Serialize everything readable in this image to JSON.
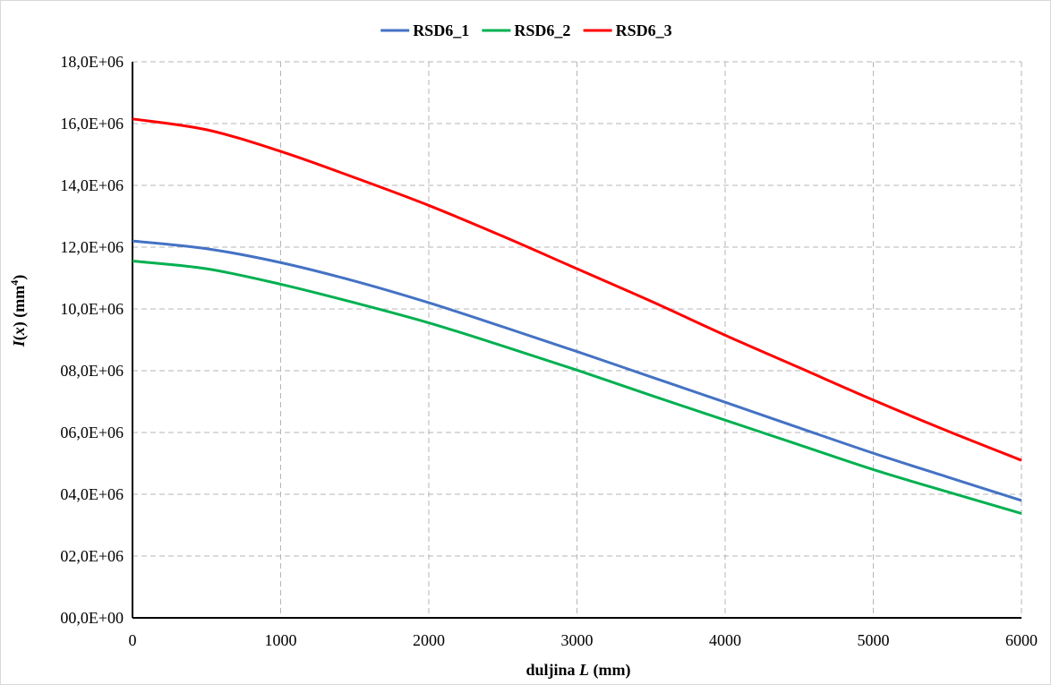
{
  "chart_data": {
    "type": "line",
    "legend": {
      "position": "top"
    },
    "grid": true,
    "grid_style": "dashed",
    "xlim": [
      0,
      6000
    ],
    "ylim": [
      0,
      18000000
    ],
    "x_ticks": [
      0,
      1000,
      2000,
      3000,
      4000,
      5000,
      6000
    ],
    "x_tick_labels": [
      "0",
      "1000",
      "2000",
      "3000",
      "4000",
      "5000",
      "6000"
    ],
    "y_ticks": [
      0,
      2000000,
      4000000,
      6000000,
      8000000,
      10000000,
      12000000,
      14000000,
      16000000,
      18000000
    ],
    "y_tick_labels": [
      "00,0E+00",
      "02,0E+06",
      "04,0E+06",
      "06,0E+06",
      "08,0E+06",
      "10,0E+06",
      "12,0E+06",
      "14,0E+06",
      "16,0E+06",
      "18,0E+06"
    ],
    "xlabel_parts": {
      "text": "duljina ",
      "italic": "L",
      "unit": " (mm)"
    },
    "ylabel_parts": {
      "italic": "I",
      "open": "(",
      "var": "x",
      "close": ") (mm",
      "sup": "4",
      "end": ")"
    },
    "x": [
      0,
      500,
      1000,
      1500,
      2000,
      2500,
      3000,
      3500,
      4000,
      4500,
      5000,
      5500,
      6000
    ],
    "series": [
      {
        "name": "RSD6_1",
        "color": "#4472c4",
        "values": [
          12200000,
          11950000,
          11500000,
          10900000,
          10200000,
          9420000,
          8620000,
          7800000,
          6980000,
          6150000,
          5330000,
          4560000,
          3800000
        ]
      },
      {
        "name": "RSD6_2",
        "color": "#00b050",
        "values": [
          11550000,
          11300000,
          10800000,
          10200000,
          9550000,
          8800000,
          8020000,
          7200000,
          6400000,
          5600000,
          4800000,
          4080000,
          3380000
        ]
      },
      {
        "name": "RSD6_3",
        "color": "#ff0000",
        "values": [
          16150000,
          15800000,
          15100000,
          14250000,
          13350000,
          12350000,
          11300000,
          10250000,
          9150000,
          8100000,
          7050000,
          6050000,
          5100000
        ]
      }
    ]
  }
}
